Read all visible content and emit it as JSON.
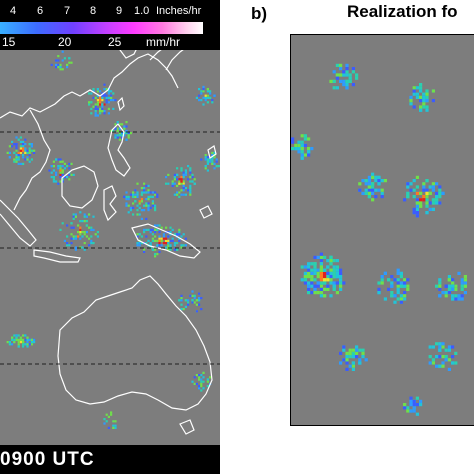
{
  "legend": {
    "inch_ticks": [
      "4",
      "6",
      "7",
      "8",
      "9",
      "1.0"
    ],
    "inch_unit": "Inches/hr",
    "mm_ticks": [
      "15",
      "20",
      "25"
    ],
    "mm_unit": "mm/hr"
  },
  "left_panel": {
    "time_label": "0900 UTC"
  },
  "right_panel": {
    "label": "b)",
    "title": "Realization fo"
  },
  "colors": {
    "background_gray": "#7d7d7d",
    "land_outline": "#ffffff",
    "legend_bg": "#000000"
  }
}
